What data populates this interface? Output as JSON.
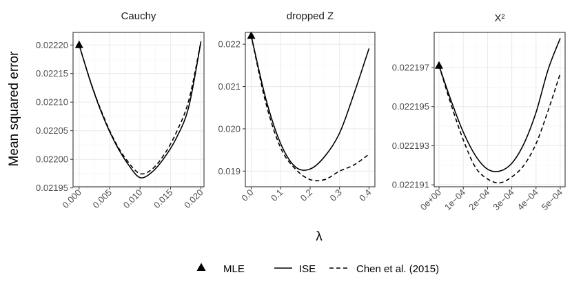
{
  "y_axis_title": "Mean squared error",
  "x_axis_title": "λ",
  "legend": {
    "items": [
      {
        "key": "mle",
        "label": "MLE",
        "symbol": "triangle"
      },
      {
        "key": "ise",
        "label": "ISE",
        "symbol": "solid-line"
      },
      {
        "key": "chen",
        "label": "Chen et al. (2015)",
        "symbol": "dashed-line"
      }
    ]
  },
  "colors": {
    "panel_background": "#ffffff",
    "grid_major": "#ebebeb",
    "grid_minor": "#f2f2f2",
    "panel_border": "#333333",
    "line": "#000000"
  },
  "chart_data": [
    {
      "type": "line",
      "title": "Cauchy",
      "xlim": [
        -0.001,
        0.0205
      ],
      "ylim": [
        0.021952,
        0.022222
      ],
      "x_ticks": [
        0.0,
        0.005,
        0.01,
        0.015,
        0.02
      ],
      "x_tick_labels": [
        "0.000",
        "0.005",
        "0.010",
        "0.015",
        "0.020"
      ],
      "y_ticks": [
        0.02195,
        0.022,
        0.02205,
        0.0221,
        0.02215,
        0.0222
      ],
      "y_tick_labels": [
        "0.02195",
        "0.02200",
        "0.02205",
        "0.02210",
        "0.02215",
        "0.02220"
      ],
      "mle": {
        "x": 0.0,
        "y": 0.0222
      },
      "series": [
        {
          "name": "ISE",
          "style": "solid",
          "x": [
            0,
            0.002,
            0.004,
            0.006,
            0.008,
            0.01,
            0.012,
            0.014,
            0.016,
            0.018,
            0.02
          ],
          "y": [
            0.0222,
            0.022131,
            0.022073,
            0.022027,
            0.021992,
            0.021968,
            0.021978,
            0.022003,
            0.022038,
            0.022092,
            0.022206
          ]
        },
        {
          "name": "Chen et al. (2015)",
          "style": "dashed",
          "x": [
            0,
            0.002,
            0.004,
            0.006,
            0.008,
            0.01,
            0.012,
            0.014,
            0.016,
            0.018,
            0.02
          ],
          "y": [
            0.0222,
            0.022132,
            0.022075,
            0.022029,
            0.021996,
            0.021975,
            0.021983,
            0.022009,
            0.022048,
            0.022103,
            0.022206
          ]
        }
      ]
    },
    {
      "type": "line",
      "title": "dropped Z",
      "xlim": [
        -0.02,
        0.42
      ],
      "ylim": [
        0.01863,
        0.02228
      ],
      "x_ticks": [
        0.0,
        0.1,
        0.2,
        0.3,
        0.4
      ],
      "x_tick_labels": [
        "0.0",
        "0.1",
        "0.2",
        "0.3",
        "0.4"
      ],
      "y_ticks": [
        0.019,
        0.02,
        0.021,
        0.022
      ],
      "y_tick_labels": [
        "0.019",
        "0.020",
        "0.021",
        "0.022"
      ],
      "mle": {
        "x": 0.0,
        "y": 0.0222
      },
      "series": [
        {
          "name": "ISE",
          "style": "solid",
          "x": [
            0,
            0.05,
            0.1,
            0.15,
            0.2,
            0.25,
            0.3,
            0.35,
            0.4
          ],
          "y": [
            0.0222,
            0.0207,
            0.01965,
            0.0191,
            0.01905,
            0.01935,
            0.0199,
            0.02085,
            0.0219
          ]
        },
        {
          "name": "Chen et al. (2015)",
          "style": "dashed",
          "x": [
            0,
            0.05,
            0.1,
            0.15,
            0.2,
            0.25,
            0.3,
            0.35,
            0.4
          ],
          "y": [
            0.0222,
            0.0206,
            0.01955,
            0.01905,
            0.0188,
            0.0188,
            0.019,
            0.01915,
            0.0194
          ]
        }
      ]
    },
    {
      "type": "line",
      "title": "X²",
      "xlim": [
        -2e-05,
        0.00052
      ],
      "ylim": [
        0.0221909,
        0.0221988
      ],
      "x_ticks": [
        0.0,
        0.0001,
        0.0002,
        0.0003,
        0.0004,
        0.0005
      ],
      "x_tick_labels": [
        "0e+00",
        "1e−04",
        "2e−04",
        "3e−04",
        "4e−04",
        "5e−04"
      ],
      "y_ticks": [
        0.022191,
        0.022193,
        0.022195,
        0.022197
      ],
      "y_tick_labels": [
        "0.022191",
        "0.022193",
        "0.022195",
        "0.022197"
      ],
      "mle": {
        "x": 0.0,
        "y": 0.0221971
      },
      "series": [
        {
          "name": "ISE",
          "style": "solid",
          "x": [
            0,
            5e-05,
            0.0001,
            0.00015,
            0.0002,
            0.00025,
            0.0003,
            0.00035,
            0.0004,
            0.00045,
            0.0005
          ],
          "y": [
            0.0221971,
            0.0221953,
            0.0221937,
            0.0221925,
            0.0221918,
            0.0221917,
            0.0221921,
            0.0221931,
            0.0221947,
            0.0221969,
            0.0221985
          ]
        },
        {
          "name": "Chen et al. (2015)",
          "style": "dashed",
          "x": [
            0,
            5e-05,
            0.0001,
            0.00015,
            0.0002,
            0.00025,
            0.0003,
            0.00035,
            0.0004,
            0.00045,
            0.0005
          ],
          "y": [
            0.0221971,
            0.0221951,
            0.0221933,
            0.0221919,
            0.0221913,
            0.0221911,
            0.0221914,
            0.022192,
            0.0221931,
            0.0221948,
            0.0221967
          ]
        }
      ]
    }
  ]
}
